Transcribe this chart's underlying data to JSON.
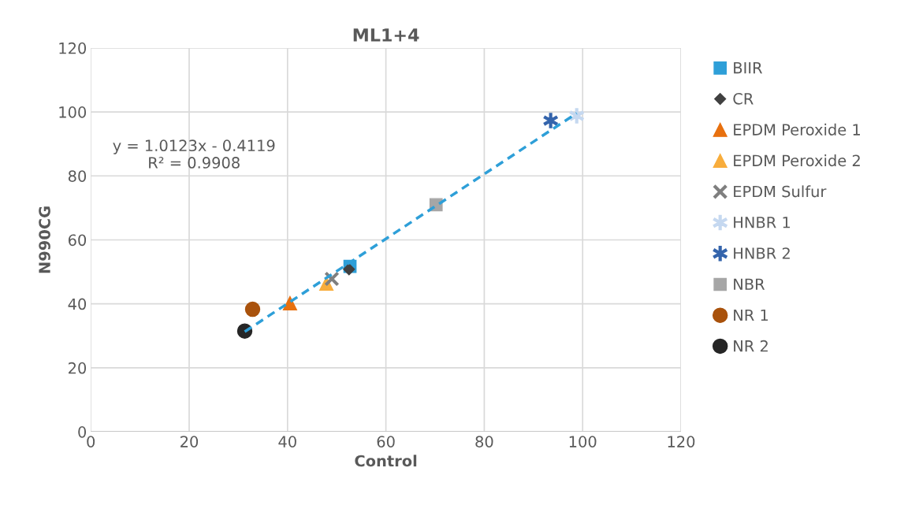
{
  "chart_data": {
    "type": "scatter",
    "title": "ML1+4",
    "xlabel": "Control",
    "ylabel": "N990CG",
    "xlim": [
      0,
      120
    ],
    "ylim": [
      0,
      120
    ],
    "xticks": [
      0,
      20,
      40,
      60,
      80,
      100,
      120
    ],
    "yticks": [
      0,
      20,
      40,
      60,
      80,
      100,
      120
    ],
    "grid": true,
    "legend": "right",
    "annotations": [
      "y = 1.0123x - 0.4119\nR² = 0.9908"
    ],
    "series": [
      {
        "name": "BIIR",
        "color": "#2e9fd8",
        "marker": "square",
        "x": [
          52.7
        ],
        "values": [
          51.7
        ]
      },
      {
        "name": "CR",
        "color": "#404040",
        "marker": "diamond",
        "x": [
          52.5
        ],
        "values": [
          50.8
        ]
      },
      {
        "name": "EPDM Peroxide 1",
        "color": "#e8700f",
        "marker": "triangle",
        "x": [
          40.5
        ],
        "values": [
          40.2
        ]
      },
      {
        "name": "EPDM Peroxide 2",
        "color": "#f8ad3c",
        "marker": "triangle",
        "x": [
          47.9
        ],
        "values": [
          46.3
        ]
      },
      {
        "name": "EPDM Sulfur",
        "color": "#7f7f7f",
        "marker": "x",
        "x": [
          49.0
        ],
        "values": [
          47.8
        ]
      },
      {
        "name": "HNBR 1",
        "color": "#c5d8f0",
        "marker": "cross",
        "x": [
          98.8
        ],
        "values": [
          98.8
        ]
      },
      {
        "name": "HNBR 2",
        "color": "#3464ac",
        "marker": "cross",
        "x": [
          93.5
        ],
        "values": [
          97.3
        ]
      },
      {
        "name": "NBR",
        "color": "#a6a6a6",
        "marker": "square",
        "x": [
          70.2
        ],
        "values": [
          71.0
        ]
      },
      {
        "name": "NR 1",
        "color": "#a9520c",
        "marker": "circle",
        "x": [
          32.9
        ],
        "values": [
          38.3
        ]
      },
      {
        "name": "NR 2",
        "color": "#262626",
        "marker": "circle",
        "x": [
          31.3
        ],
        "values": [
          31.5
        ]
      },
      {
        "type": "line",
        "color": "#2e9fd8",
        "line_style": "dashed",
        "marker": "none",
        "x": [
          31.3,
          98.8
        ],
        "values": [
          31.3,
          99.6
        ]
      }
    ]
  }
}
